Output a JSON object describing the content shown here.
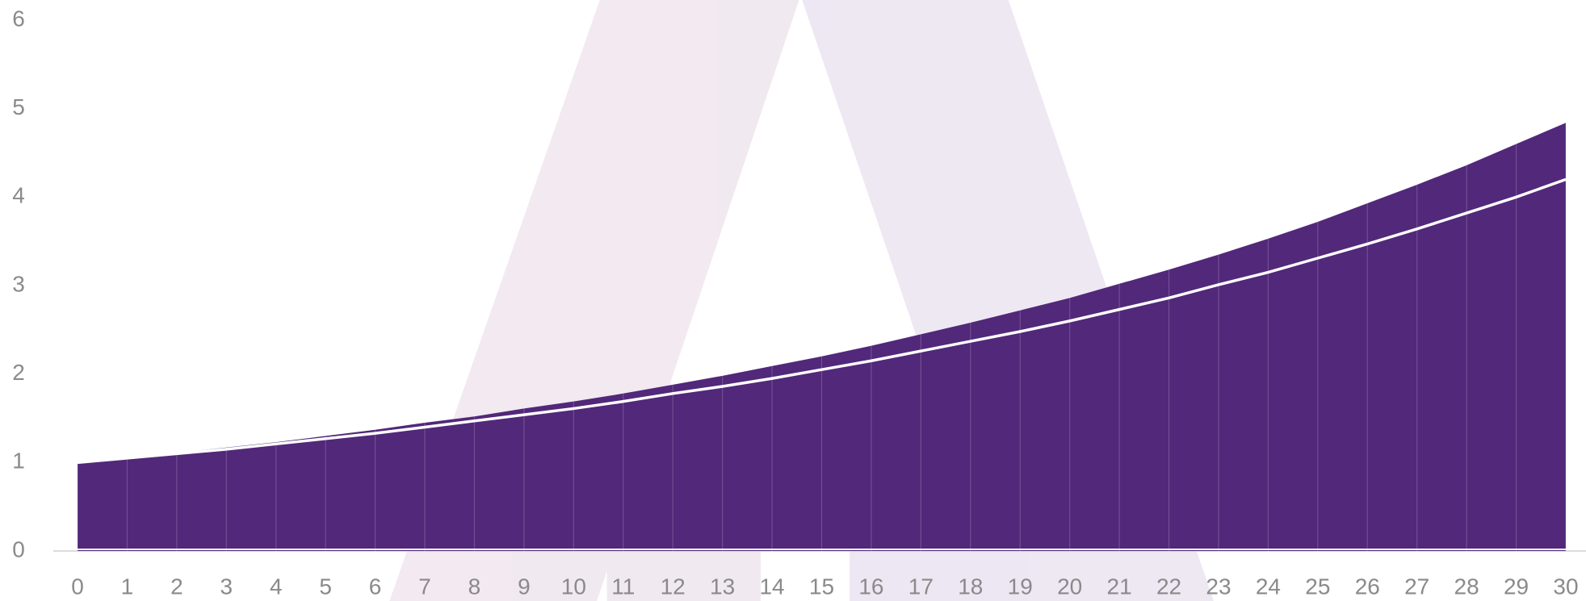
{
  "chart_data": {
    "type": "area",
    "x": [
      0,
      1,
      2,
      3,
      4,
      5,
      6,
      7,
      8,
      9,
      10,
      11,
      12,
      13,
      14,
      15,
      16,
      17,
      18,
      19,
      20,
      21,
      22,
      23,
      24,
      25,
      26,
      27,
      28,
      29,
      30
    ],
    "xlim": [
      0,
      30
    ],
    "ylim": [
      0,
      6
    ],
    "yticks": [
      0,
      1,
      2,
      3,
      4,
      5,
      6
    ],
    "series": [
      {
        "type": "area",
        "color": "#52287a",
        "values": [
          1.0,
          1.05,
          1.11,
          1.17,
          1.23,
          1.3,
          1.37,
          1.45,
          1.52,
          1.61,
          1.69,
          1.78,
          1.88,
          1.98,
          2.09,
          2.2,
          2.32,
          2.45,
          2.58,
          2.72,
          2.86,
          3.02,
          3.18,
          3.35,
          3.53,
          3.72,
          3.93,
          4.14,
          4.36,
          4.6,
          4.84
        ]
      },
      {
        "type": "line",
        "color": "#ffffff",
        "values": [
          1.0,
          1.05,
          1.1,
          1.15,
          1.21,
          1.27,
          1.33,
          1.4,
          1.47,
          1.54,
          1.61,
          1.69,
          1.78,
          1.86,
          1.95,
          2.05,
          2.15,
          2.26,
          2.37,
          2.48,
          2.6,
          2.73,
          2.86,
          3.01,
          3.15,
          3.31,
          3.47,
          3.64,
          3.82,
          4.0,
          4.2
        ]
      }
    ]
  }
}
